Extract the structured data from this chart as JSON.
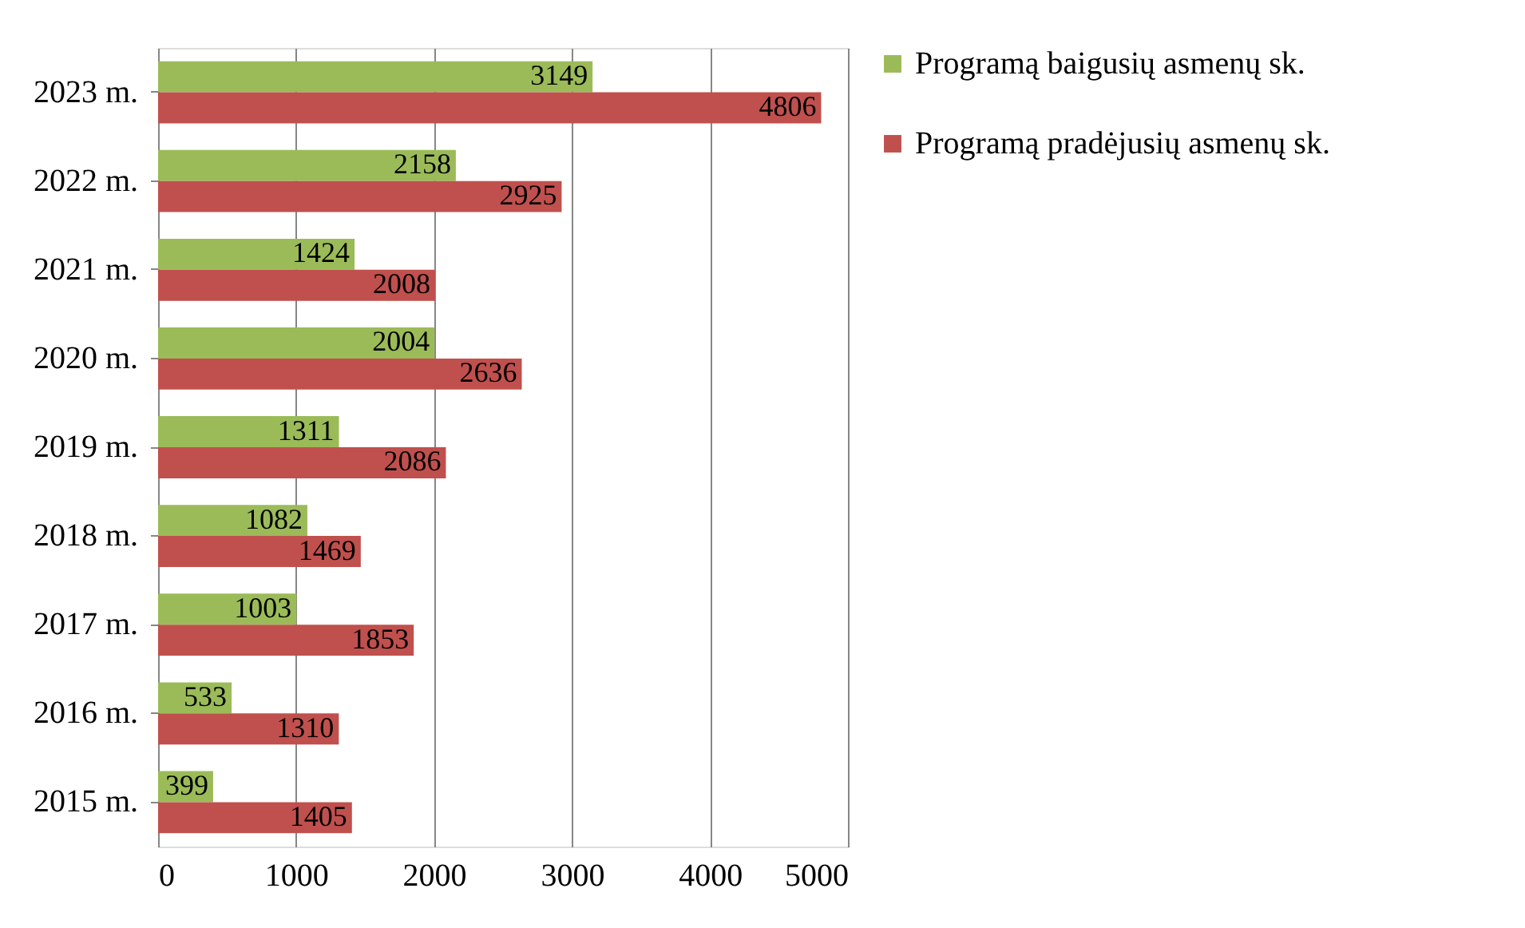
{
  "chart_data": {
    "type": "bar",
    "orientation": "horizontal",
    "categories": [
      "2023 m.",
      "2022 m.",
      "2021 m.",
      "2020 m.",
      "2019 m.",
      "2018 m.",
      "2017 m.",
      "2016 m.",
      "2015 m."
    ],
    "series": [
      {
        "name": "Programą baigusių asmenų sk.",
        "color": "#9bbb59",
        "values": [
          3149,
          2158,
          1424,
          2004,
          1311,
          1082,
          1003,
          533,
          399
        ]
      },
      {
        "name": "Programą pradėjusių asmenų sk.",
        "color": "#c0504d",
        "values": [
          4806,
          2925,
          2008,
          2636,
          2086,
          1469,
          1853,
          1310,
          1405
        ]
      }
    ],
    "xlim": [
      0,
      5000
    ],
    "xticks": [
      0,
      1000,
      2000,
      3000,
      4000,
      5000
    ],
    "grid": "x",
    "legend": "right",
    "data_labels": true
  }
}
